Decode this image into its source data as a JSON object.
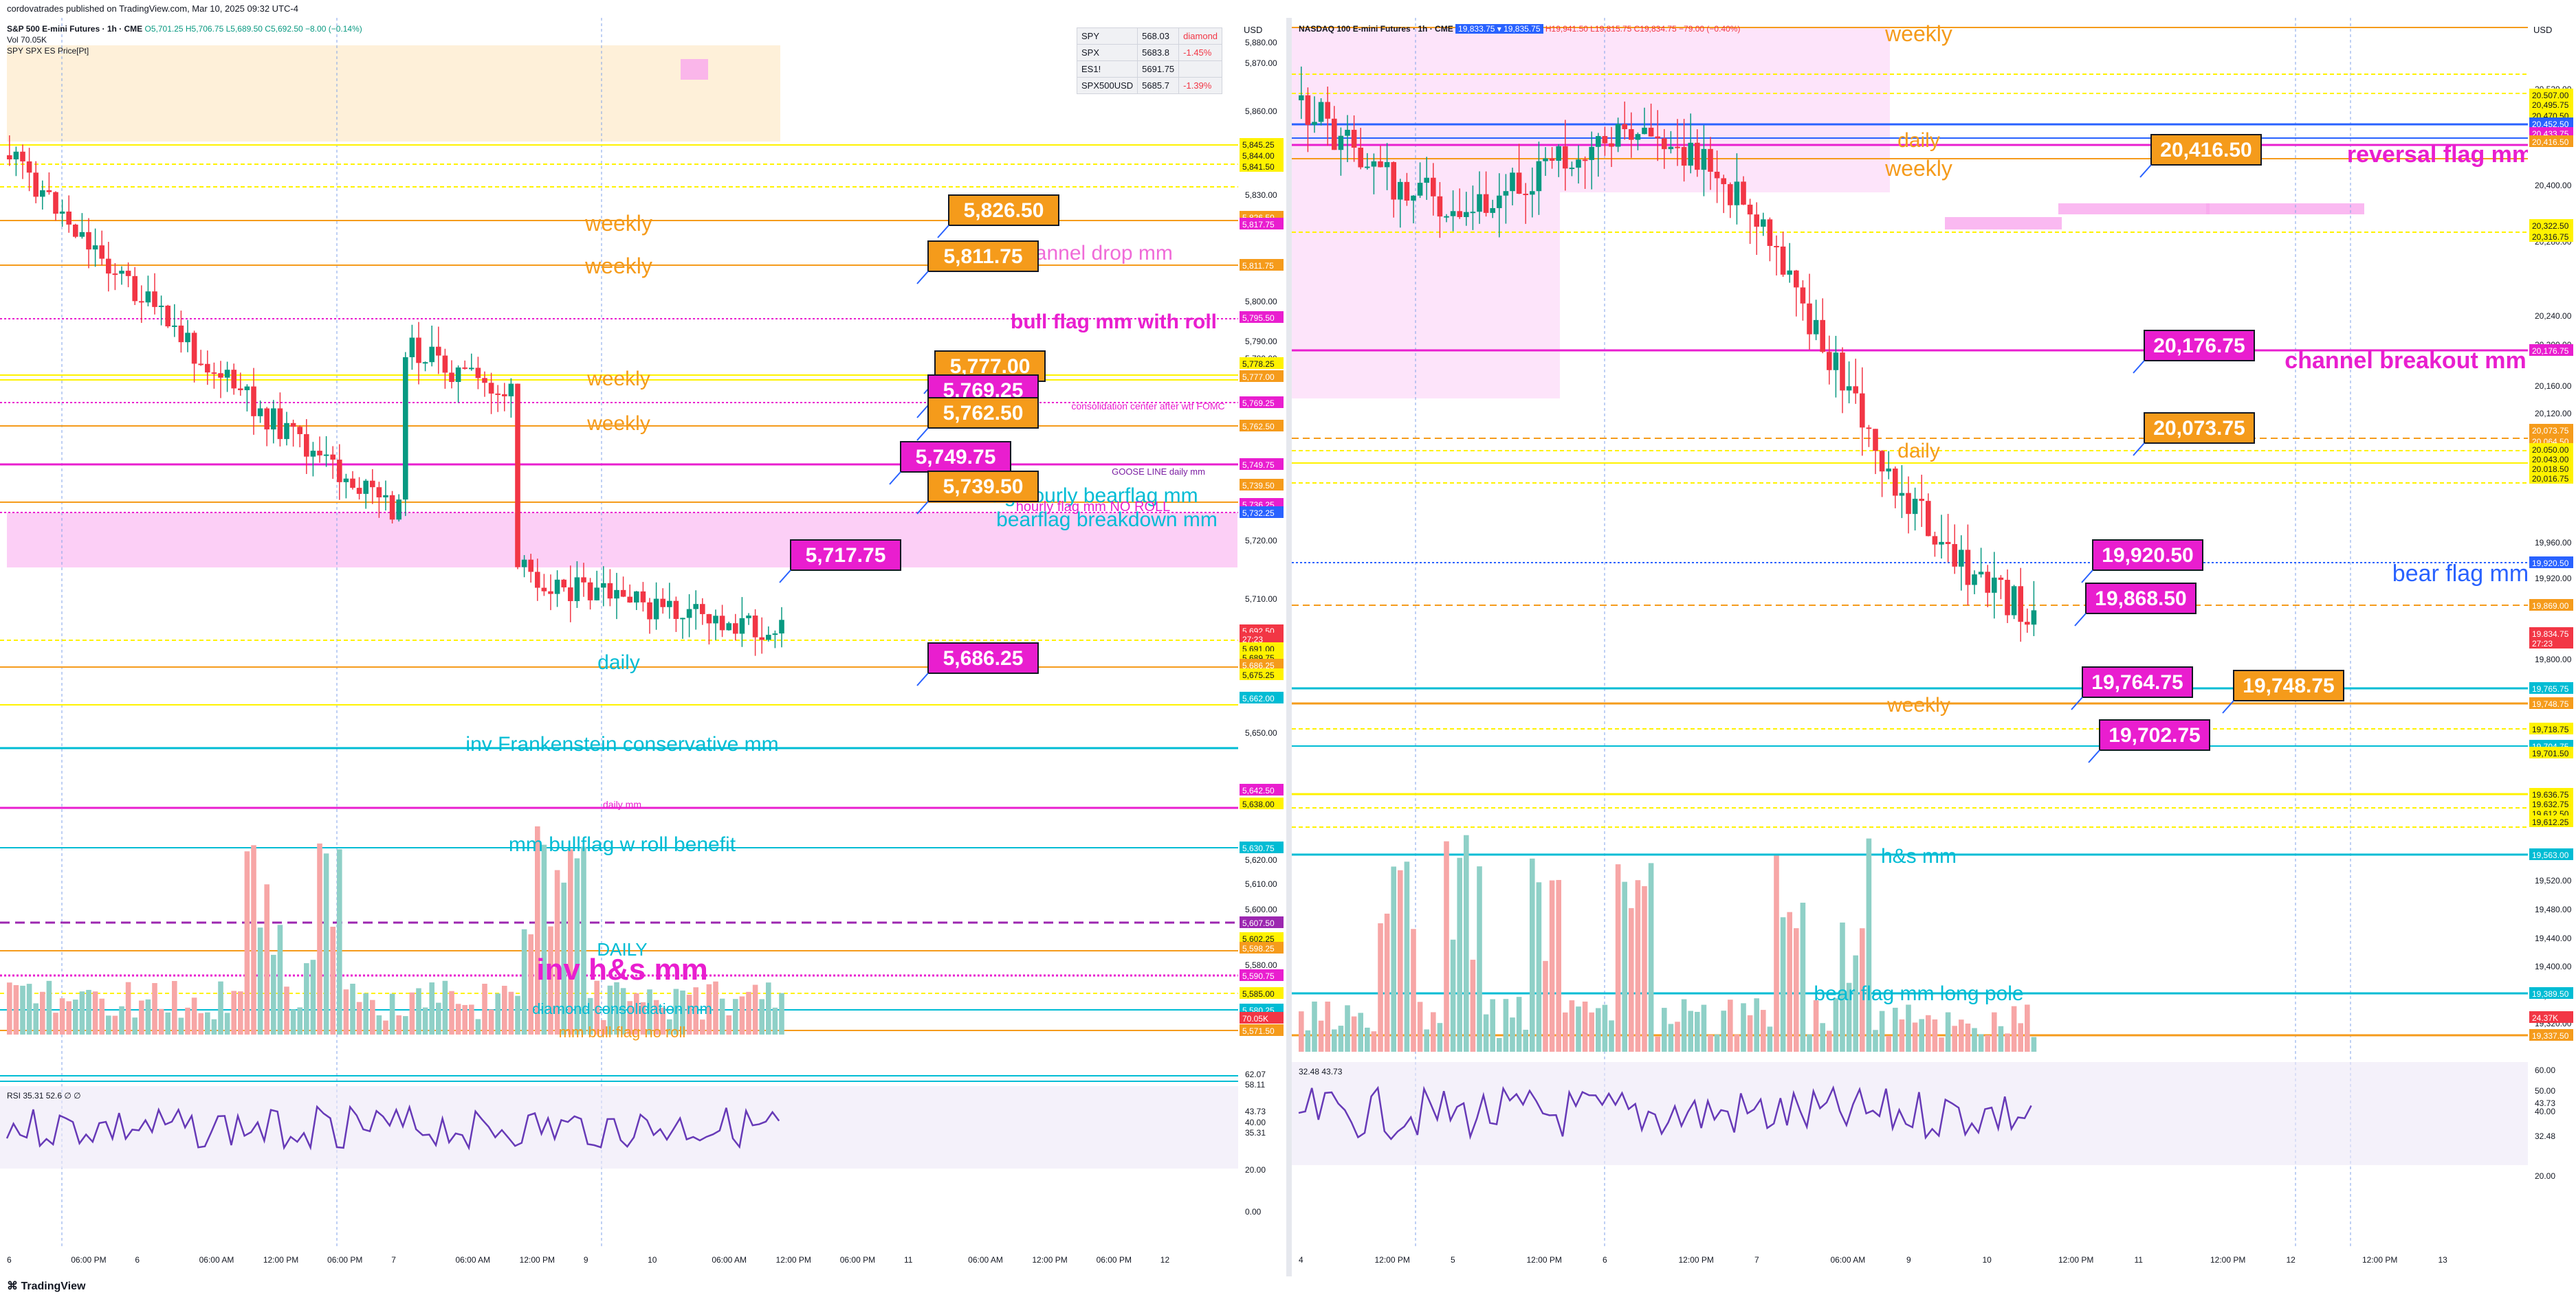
{
  "header": {
    "published": "cordovatrades published on TradingView.com, Mar 10, 2025 09:32 UTC-4"
  },
  "footer": {
    "brand": "TradingView"
  },
  "left": {
    "symbol": "S&P 500 E-mini Futures · 1h · CME",
    "ohlc": "O5,701.25 H5,706.75 L5,689.50 C5,692.50 −8.00 (−0.14%)",
    "vol": "Vol  70.05K",
    "overlay": "SPY SPX ES Price[Pt]",
    "currency": "USD",
    "rsi_label": "RSI  35.31  52.6  ∅  ∅",
    "watchlist": [
      {
        "sym": "SPY",
        "val": "568.03",
        "chg": "diamond",
        "neg": false
      },
      {
        "sym": "SPX",
        "val": "5683.8",
        "chg": "-1.45%",
        "neg": true
      },
      {
        "sym": "ES1!",
        "val": "5691.75",
        "chg": "",
        "neg": false
      },
      {
        "sym": "SPX500USD",
        "val": "5685.7",
        "chg": "-1.39%",
        "neg": true
      }
    ],
    "time_axis": [
      "6",
      "06:00 PM",
      "6",
      "06:00 AM",
      "12:00 PM",
      "06:00 PM",
      "7",
      "06:00 AM",
      "12:00 PM",
      "9",
      "10",
      "06:00 AM",
      "12:00 PM",
      "06:00 PM",
      "11",
      "06:00 AM",
      "12:00 PM",
      "06:00 PM",
      "12"
    ],
    "price_ticks": [
      "5,880.00",
      "5,870.00",
      "5,860.00",
      "5,830.00",
      "5,800.00",
      "5,790.00",
      "5,780.00",
      "5,720.00",
      "5,710.00",
      "5,700.00",
      "5,690.00",
      "5,680.00",
      "5,650.00",
      "5,620.00",
      "5,610.00",
      "5,600.00",
      "5,580.00"
    ],
    "levels": [
      {
        "price": "5,845.25",
        "bg": "#fff200"
      },
      {
        "price": "5,844.00",
        "bg": "#fff200"
      },
      {
        "price": "5,841.50",
        "bg": "#fff200"
      },
      {
        "price": "5,826.50",
        "bg": "#f59b1b"
      },
      {
        "price": "5,817.75",
        "bg": "#e91ecf"
      },
      {
        "price": "5,811.75",
        "bg": "#f59b1b"
      },
      {
        "price": "5,795.50",
        "bg": "#e91ecf"
      },
      {
        "price": "5,778.25",
        "bg": "#fff200"
      },
      {
        "price": "5,777.00",
        "bg": "#f59b1b"
      },
      {
        "price": "5,769.25",
        "bg": "#e91ecf"
      },
      {
        "price": "5,762.50",
        "bg": "#f59b1b"
      },
      {
        "price": "5,749.75",
        "bg": "#e91ecf"
      },
      {
        "price": "5,739.50",
        "bg": "#f59b1b"
      },
      {
        "price": "5,736.25",
        "bg": "#e91ecf"
      },
      {
        "price": "5,732.25",
        "bg": "#2962ff"
      },
      {
        "price": "5,692.50",
        "bg": "#f23645"
      },
      {
        "price": "27:23",
        "bg": "#f23645"
      },
      {
        "price": "5,691.00",
        "bg": "#fff200"
      },
      {
        "price": "5,689.75",
        "bg": "#fff200"
      },
      {
        "price": "5,686.25",
        "bg": "#f59b1b"
      },
      {
        "price": "5,675.25",
        "bg": "#fff200"
      },
      {
        "price": "5,662.00",
        "bg": "#00bcd4"
      },
      {
        "price": "5,642.50",
        "bg": "#e91ecf"
      },
      {
        "price": "5,638.00",
        "bg": "#fff200"
      },
      {
        "price": "5,630.75",
        "bg": "#00bcd4"
      },
      {
        "price": "5,607.50",
        "bg": "#9c27b0"
      },
      {
        "price": "5,602.25",
        "bg": "#fff200"
      },
      {
        "price": "5,598.25",
        "bg": "#f59b1b"
      },
      {
        "price": "5,590.75",
        "bg": "#e91ecf"
      },
      {
        "price": "5,585.00",
        "bg": "#fff200"
      },
      {
        "price": "5,580.25",
        "bg": "#00bcd4"
      },
      {
        "price": "70.05K",
        "bg": "#f23645"
      },
      {
        "price": "5,571.50",
        "bg": "#f59b1b"
      }
    ],
    "rsi_ticks": [
      "62.07",
      "58.11",
      "43.73",
      "40.00",
      "35.31",
      "20.00",
      "0.00"
    ],
    "annotations": [
      {
        "text": "weekly",
        "color": "#f59b1b"
      },
      {
        "text": "weekly",
        "color": "#f59b1b"
      },
      {
        "text": "channel drop mm",
        "color": "#f06bd8"
      },
      {
        "text": "bull flag mm with roll",
        "color": "#e91ecf"
      },
      {
        "text": "weekly",
        "color": "#f59b1b"
      },
      {
        "text": "weekly",
        "color": "#f59b1b"
      },
      {
        "text": "consolidation center after wtf FOMC",
        "color": "#e91ecf"
      },
      {
        "text": "GOOSE LINE daily mm",
        "color": "#7b1fa2"
      },
      {
        "text": "big hourly bearflag mm",
        "color": "#00bcd4"
      },
      {
        "text": "hourly flag mm NO ROLL",
        "color": "#e91ecf"
      },
      {
        "text": "bearflag breakdown mm",
        "color": "#00bcd4"
      },
      {
        "text": "daily",
        "color": "#00bcd4"
      },
      {
        "text": "inv Frankenstein conservative mm",
        "color": "#00bcd4"
      },
      {
        "text": "daily mm",
        "color": "#e91ecf"
      },
      {
        "text": "mm bullflag w roll benefit",
        "color": "#00bcd4"
      },
      {
        "text": "DAILY",
        "color": "#00bcd4"
      },
      {
        "text": "inv h&s mm",
        "color": "#e91ecf"
      },
      {
        "text": "diamond consolidation mm",
        "color": "#00bcd4"
      },
      {
        "text": "mm bull flag no roll",
        "color": "#f59b1b"
      }
    ],
    "callouts": [
      {
        "text": "5,826.50",
        "bg": "#f59b1b"
      },
      {
        "text": "5,811.75",
        "bg": "#f59b1b"
      },
      {
        "text": "5,777.00",
        "bg": "#f59b1b"
      },
      {
        "text": "5,769.25",
        "bg": "#e91ecf"
      },
      {
        "text": "5,762.50",
        "bg": "#f59b1b"
      },
      {
        "text": "5,749.75",
        "bg": "#e91ecf"
      },
      {
        "text": "5,739.50",
        "bg": "#f59b1b"
      },
      {
        "text": "5,717.75",
        "bg": "#e91ecf"
      },
      {
        "text": "5,686.25",
        "bg": "#e91ecf"
      }
    ]
  },
  "right": {
    "symbol": "NASDAQ 100 E-mini Futures · 1h · CME",
    "ohlc": "H19,941.50 L19,815.75 C19,834.75 −79.00 (−0.40%)",
    "badge": "19,833.75 ▾ 19,835.75",
    "currency": "USD",
    "rsi_label": "32.48  43.73",
    "time_axis": [
      "4",
      "12:00 PM",
      "5",
      "12:00 PM",
      "6",
      "12:00 PM",
      "7",
      "06:00 AM",
      "9",
      "10",
      "12:00 PM",
      "11",
      "12:00 PM",
      "12",
      "12:00 PM",
      "13"
    ],
    "price_ticks": [
      "20,520.00",
      "20,480.00",
      "20,400.00",
      "20,280.00",
      "20,240.00",
      "20,200.00",
      "20,160.00",
      "20,120.00",
      "19,960.00",
      "19,920.00",
      "19,880.00",
      "19,800.00",
      "19,520.00",
      "19,480.00",
      "19,440.00",
      "19,400.00",
      "19,360.00",
      "19,320.00"
    ],
    "levels": [
      {
        "price": "20,507.00",
        "bg": "#fff200"
      },
      {
        "price": "20,495.75",
        "bg": "#fff200"
      },
      {
        "price": "20,470.50",
        "bg": "#fff200"
      },
      {
        "price": "20,452.50",
        "bg": "#2962ff"
      },
      {
        "price": "20,433.75",
        "bg": "#e91ecf"
      },
      {
        "price": "20,416.50",
        "bg": "#f59b1b"
      },
      {
        "price": "20,322.50",
        "bg": "#fff200"
      },
      {
        "price": "20,316.75",
        "bg": "#fff200"
      },
      {
        "price": "20,176.75",
        "bg": "#e91ecf"
      },
      {
        "price": "20,073.75",
        "bg": "#f59b1b"
      },
      {
        "price": "20,064.50",
        "bg": "#f59b1b"
      },
      {
        "price": "20,050.00",
        "bg": "#fff200"
      },
      {
        "price": "20,043.00",
        "bg": "#fff200"
      },
      {
        "price": "20,018.50",
        "bg": "#fff200"
      },
      {
        "price": "20,016.75",
        "bg": "#fff200"
      },
      {
        "price": "19,920.50",
        "bg": "#2962ff"
      },
      {
        "price": "19,869.00",
        "bg": "#f59b1b"
      },
      {
        "price": "19,834.75",
        "bg": "#f23645"
      },
      {
        "price": "27:23",
        "bg": "#f23645"
      },
      {
        "price": "19,765.75",
        "bg": "#00bcd4"
      },
      {
        "price": "19,748.75",
        "bg": "#f59b1b"
      },
      {
        "price": "19,718.75",
        "bg": "#fff200"
      },
      {
        "price": "19,704.75",
        "bg": "#00bcd4"
      },
      {
        "price": "19,701.50",
        "bg": "#fff200"
      },
      {
        "price": "19,636.75",
        "bg": "#fff200"
      },
      {
        "price": "19,632.75",
        "bg": "#fff200"
      },
      {
        "price": "19,612.50",
        "bg": "#fff200"
      },
      {
        "price": "19,612.25",
        "bg": "#fff200"
      },
      {
        "price": "19,563.00",
        "bg": "#00bcd4"
      },
      {
        "price": "19,389.50",
        "bg": "#00bcd4"
      },
      {
        "price": "24.37K",
        "bg": "#f23645"
      },
      {
        "price": "19,337.50",
        "bg": "#f59b1b"
      }
    ],
    "rsi_ticks": [
      "60.00",
      "50.00",
      "43.73",
      "40.00",
      "32.48",
      "20.00"
    ],
    "annotations": [
      {
        "text": "weekly",
        "color": "#f59b1b"
      },
      {
        "text": "daily",
        "color": "#f59b1b"
      },
      {
        "text": "weekly",
        "color": "#f59b1b"
      },
      {
        "text": "reversal flag mm",
        "color": "#e91ecf"
      },
      {
        "text": "channel breakout mm",
        "color": "#e91ecf"
      },
      {
        "text": "daily",
        "color": "#f59b1b"
      },
      {
        "text": "bear flag mm",
        "color": "#2962ff"
      },
      {
        "text": "weekly",
        "color": "#f59b1b"
      },
      {
        "text": "h&s mm",
        "color": "#00bcd4"
      },
      {
        "text": "bear flag mm long pole",
        "color": "#00bcd4"
      }
    ],
    "callouts": [
      {
        "text": "20,416.50",
        "bg": "#f59b1b"
      },
      {
        "text": "20,176.75",
        "bg": "#e91ecf"
      },
      {
        "text": "20,073.75",
        "bg": "#f59b1b"
      },
      {
        "text": "19,920.50",
        "bg": "#e91ecf"
      },
      {
        "text": "19,868.50",
        "bg": "#e91ecf"
      },
      {
        "text": "19,764.75",
        "bg": "#e91ecf"
      },
      {
        "text": "19,748.75",
        "bg": "#f59b1b"
      },
      {
        "text": "19,702.75",
        "bg": "#e91ecf"
      }
    ]
  }
}
